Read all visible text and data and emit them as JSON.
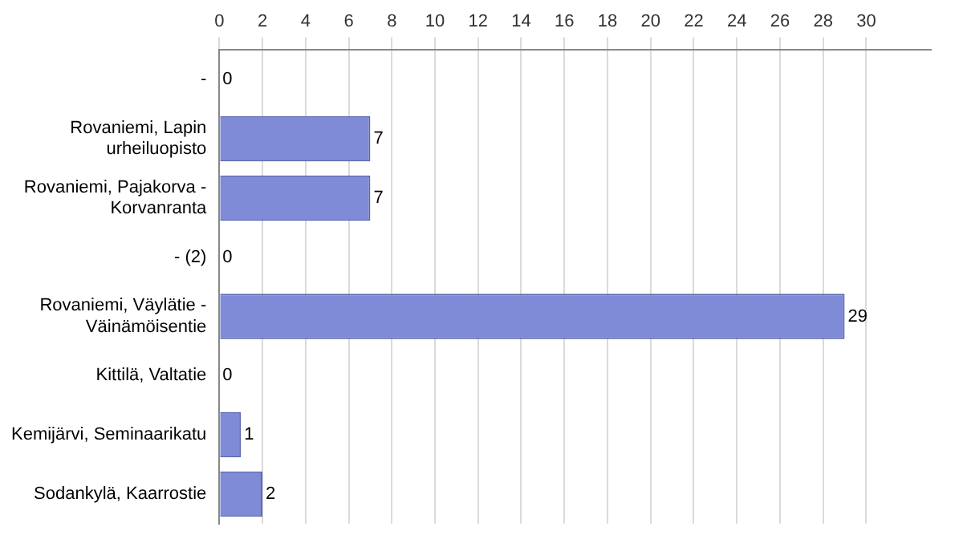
{
  "chart_data": {
    "type": "bar",
    "orientation": "horizontal",
    "categories": [
      "-",
      "Rovaniemi, Lapin urheiluopisto",
      "Rovaniemi, Pajakorva - Korvanranta",
      "- (2)",
      "Rovaniemi, Väylätie - Väinämöisentie",
      "Kittilä, Valtatie",
      "Kemijärvi, Seminaarikatu",
      "Sodankylä, Kaarrostie"
    ],
    "values": [
      0,
      7,
      7,
      0,
      29,
      0,
      1,
      2
    ],
    "color": "#7f8bd6",
    "xlim": [
      0,
      33
    ],
    "xticks": [
      0,
      2,
      4,
      6,
      8,
      10,
      12,
      14,
      16,
      18,
      20,
      22,
      24,
      26,
      28,
      30
    ],
    "grid": "x",
    "data_labels": true,
    "legend": false
  }
}
